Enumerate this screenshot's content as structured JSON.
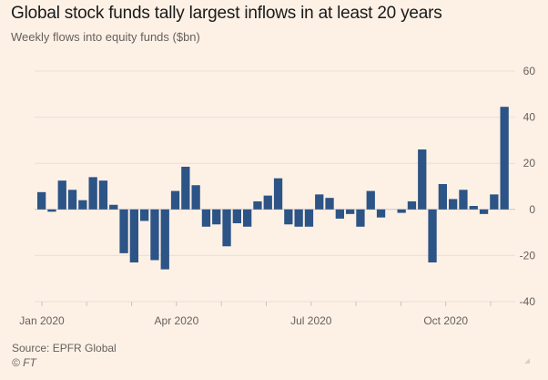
{
  "header": {
    "title": "Global stock funds tally largest inflows in at least 20 years",
    "subtitle": "Weekly flows into equity funds ($bn)"
  },
  "footer": {
    "source": "Source: EPFR Global",
    "credit": "© FT"
  },
  "colors": {
    "bar": "#2d5486",
    "background": "#fdf1e6",
    "gridline": "#e9dfd6",
    "zero_line": "#cfc5bc",
    "tick_label": "#66605c"
  },
  "chart_data": {
    "type": "bar",
    "title": "Global stock funds tally largest inflows in at least 20 years",
    "subtitle": "Weekly flows into equity funds ($bn)",
    "xlabel": "",
    "ylabel": "",
    "unit": "$bn",
    "frequency": "weekly",
    "ylim": [
      -40,
      60
    ],
    "yticks": [
      60,
      40,
      20,
      0,
      -20,
      -40
    ],
    "y_axis_position": "right",
    "grid": true,
    "x_month_ticks": 11,
    "x_labels": [
      {
        "label": "Jan 2020",
        "month_index": 0
      },
      {
        "label": "Apr 2020",
        "month_index": 3
      },
      {
        "label": "Jul 2020",
        "month_index": 6
      },
      {
        "label": "Oct 2020",
        "month_index": 9
      }
    ],
    "values": [
      7.5,
      -1,
      12.5,
      8.5,
      4,
      14,
      12.5,
      2,
      -19,
      -23,
      -5,
      -22,
      -26,
      8,
      18.5,
      10.5,
      -7.5,
      -6.5,
      -16,
      -6,
      -7.5,
      3.5,
      6,
      13.5,
      -6.5,
      -7.5,
      -7.5,
      6.5,
      5,
      -4,
      -2,
      -7.5,
      8,
      -3.5,
      0,
      -1.5,
      3.5,
      26,
      -23,
      11,
      4.5,
      8.5,
      1.5,
      -2,
      6.5,
      44.5
    ]
  }
}
